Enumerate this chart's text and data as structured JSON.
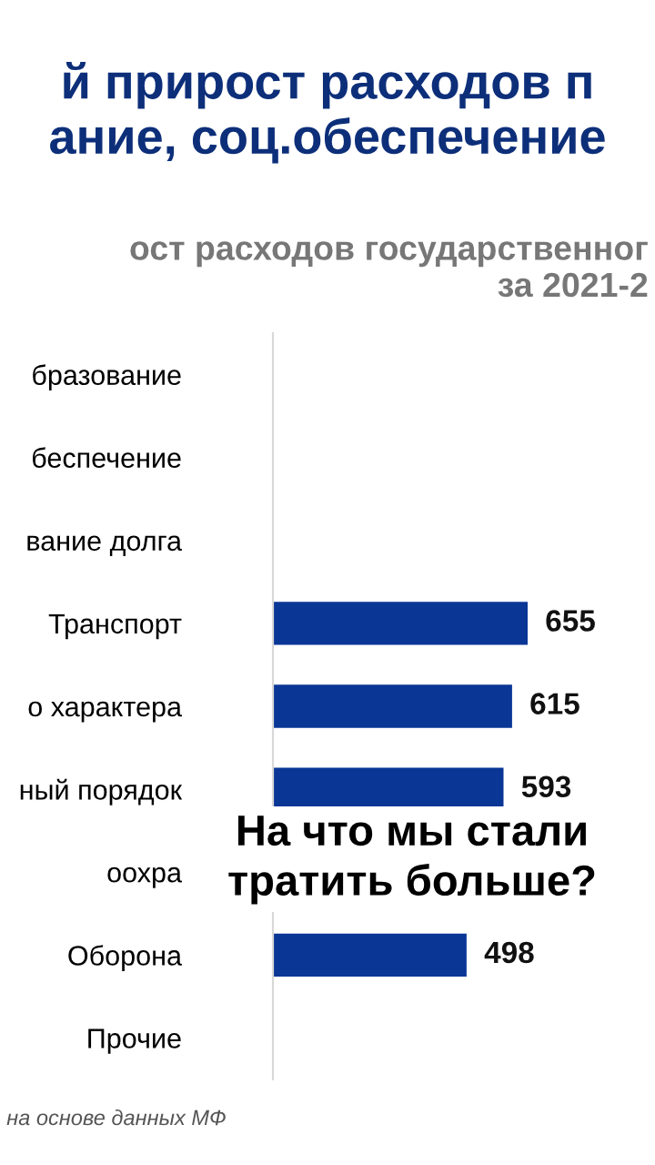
{
  "chart_data": {
    "type": "bar",
    "orientation": "horizontal",
    "title": "й прирост расходов п\nание, соц.обеспечение",
    "subtitle": "ост расходов государственног\nза 2021-2",
    "categories": [
      "бразование",
      "беспечение",
      "вание долга",
      "Транспорт",
      "о характера",
      "ный порядок",
      "оохра",
      "Оборона",
      "Прочие"
    ],
    "values": [
      null,
      null,
      null,
      655,
      615,
      593,
      null,
      498,
      null
    ],
    "colors": [
      "#0a3696",
      "#0a3696",
      "#0a3696",
      "#0a3696",
      "#0a3696",
      "#0a3696",
      "#0a3696",
      "#0a3696",
      "#808080"
    ],
    "value_labels": [
      null,
      null,
      null,
      "655",
      "615",
      "593",
      null,
      "498",
      null
    ],
    "tick_labels": "y",
    "annotations": [
      "На что мы стали\nтратить больше?",
      "на основе данных МФ"
    ]
  }
}
